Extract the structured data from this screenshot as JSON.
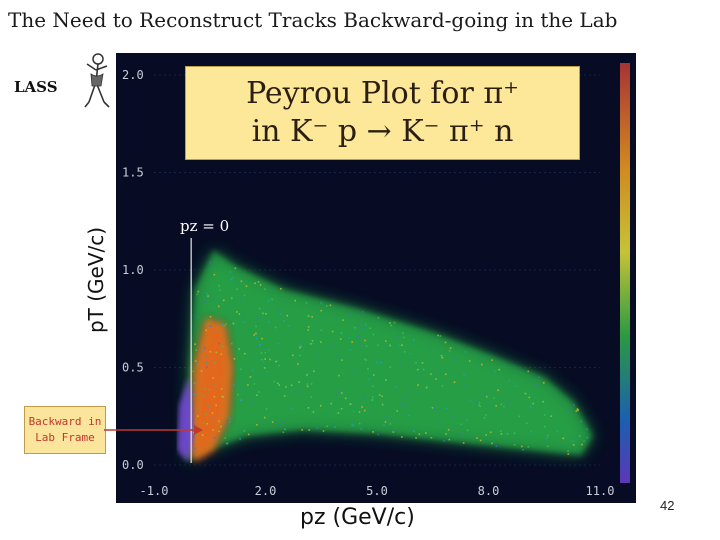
{
  "slide": {
    "title": "The Need to Reconstruct Tracks Backward-going in the Lab",
    "logo_text": "LASS",
    "page_number": "42"
  },
  "inset": {
    "line1": "Peyrou Plot for π⁺",
    "line2": "in K⁻ p → K⁻ π⁺ n"
  },
  "annotation": {
    "pz_zero": "pz = 0",
    "callout_line1": "Backward in",
    "callout_line2": "Lab Frame"
  },
  "colors": {
    "plot_background": "#070c24",
    "inset_fill": "#fde89a",
    "callout_text": "#c0392b",
    "arrow": "#c0392b"
  },
  "chart_data": {
    "type": "heatmap",
    "title": "",
    "xlabel": "pz (GeV/c)",
    "ylabel": "pT (GeV/c)",
    "x_ticks": [
      "-1.0",
      "2.0",
      "5.0",
      "8.0",
      "11.0"
    ],
    "y_ticks": [
      "0.0",
      "0.5",
      "1.0",
      "1.5",
      "2.0"
    ],
    "xlim": [
      -1.0,
      11.0
    ],
    "ylim": [
      0.0,
      2.0
    ],
    "reference_line": {
      "x": 0.0,
      "label": "pz = 0"
    },
    "density_colors": [
      "#6b3fd0",
      "#3a5de0",
      "#1ba6c7",
      "#22c25a",
      "#b7d43a",
      "#f3b71f",
      "#ec6a12",
      "#d3231a",
      "#c03ad0"
    ],
    "regions": [
      {
        "name": "kinematic envelope",
        "color": "green",
        "boundary": [
          [
            -0.1,
            0.1
          ],
          [
            -0.05,
            0.5
          ],
          [
            0.1,
            0.9
          ],
          [
            0.6,
            1.1
          ],
          [
            1.2,
            1.02
          ],
          [
            2.5,
            0.9
          ],
          [
            4.5,
            0.8
          ],
          [
            6.5,
            0.68
          ],
          [
            8.0,
            0.57
          ],
          [
            9.5,
            0.45
          ],
          [
            10.3,
            0.32
          ],
          [
            10.8,
            0.15
          ],
          [
            10.5,
            0.05
          ],
          [
            9.0,
            0.08
          ],
          [
            7.0,
            0.12
          ],
          [
            5.0,
            0.16
          ],
          [
            3.0,
            0.18
          ],
          [
            1.5,
            0.15
          ],
          [
            0.5,
            0.08
          ],
          [
            -0.1,
            0.02
          ]
        ]
      },
      {
        "name": "high-density band",
        "color": "red",
        "boundary": [
          [
            0.0,
            0.08
          ],
          [
            0.1,
            0.5
          ],
          [
            0.4,
            0.75
          ],
          [
            0.9,
            0.72
          ],
          [
            1.1,
            0.5
          ],
          [
            1.0,
            0.25
          ],
          [
            0.6,
            0.08
          ],
          [
            0.1,
            0.02
          ]
        ]
      },
      {
        "name": "backward region",
        "color": "purple",
        "boundary": [
          [
            -0.35,
            0.08
          ],
          [
            -0.3,
            0.3
          ],
          [
            -0.05,
            0.45
          ],
          [
            0.05,
            0.15
          ],
          [
            -0.1,
            0.02
          ]
        ]
      }
    ]
  }
}
